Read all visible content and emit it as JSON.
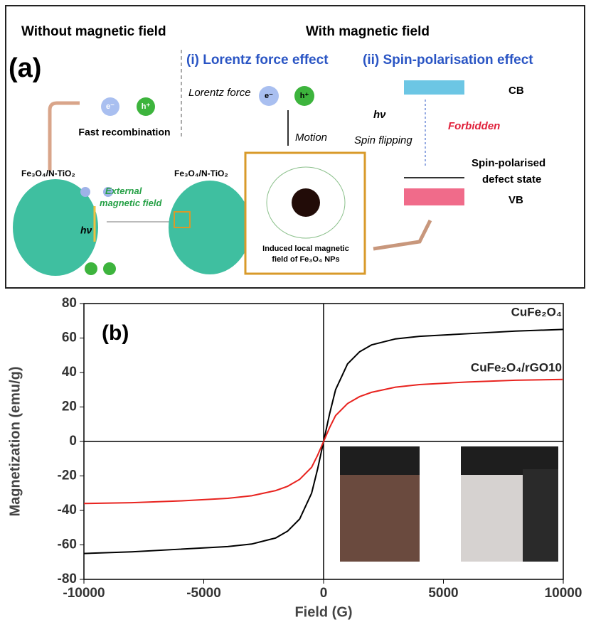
{
  "diagram": {
    "label": "(a)",
    "left_heading": "Without magnetic field",
    "right_heading": "With magnetic field",
    "effect_1": "(i) Lorentz force effect",
    "effect_2": "(ii) Spin-polarisation effect",
    "lorentz_force": "Lorentz force",
    "electron": "e⁻",
    "hole": "h⁺",
    "fast_recombination": "Fast recombination",
    "motion": "Motion",
    "material_left": "Fe₃O₄/N-TiO₂",
    "material_right": "Fe₃O₄/N-TiO₂",
    "external_field": [
      "External",
      "magnetic field"
    ],
    "light_left": "hν",
    "light_right": "hν",
    "induced_field": [
      "Induced local magnetic",
      "field of Fe₃O₄ NPs"
    ],
    "cb": "CB",
    "vb": "VB",
    "forbidden": "Forbidden",
    "spin_flipping": "Spin flipping",
    "defect_state": [
      "Spin-polarised",
      "defect state"
    ]
  },
  "chart_data": {
    "type": "line",
    "panel_label": "(b)",
    "x_label": "Field (G)",
    "y_label": "Magnetization (emu/g)",
    "x": [
      -10000,
      -8000,
      -6000,
      -4000,
      -3000,
      -2000,
      -1500,
      -1000,
      -500,
      -250,
      0,
      250,
      500,
      1000,
      1500,
      2000,
      3000,
      4000,
      6000,
      8000,
      10000
    ],
    "series": [
      {
        "name": "CuFe₂O₄",
        "color": "#000000",
        "values": [
          -65,
          -64,
          -62.5,
          -61,
          -59.5,
          -56,
          -52,
          -45,
          -30,
          -16,
          0,
          16,
          30,
          45,
          52,
          56,
          59.5,
          61,
          62.5,
          64,
          65
        ]
      },
      {
        "name": "CuFe₂O₄/rGO10",
        "color": "#e8231f",
        "values": [
          -36,
          -35.5,
          -34.5,
          -33,
          -31.5,
          -28.5,
          -26,
          -22,
          -15,
          -8,
          0,
          8,
          15,
          22,
          26,
          28.5,
          31.5,
          33,
          34.5,
          35.5,
          36
        ]
      }
    ],
    "xlim": [
      -10000,
      10000
    ],
    "ylim": [
      -80,
      80
    ],
    "xticks": [
      -10000,
      -5000,
      0,
      5000,
      10000
    ],
    "yticks": [
      -80,
      -60,
      -40,
      -20,
      0,
      20,
      40,
      60,
      80
    ]
  }
}
